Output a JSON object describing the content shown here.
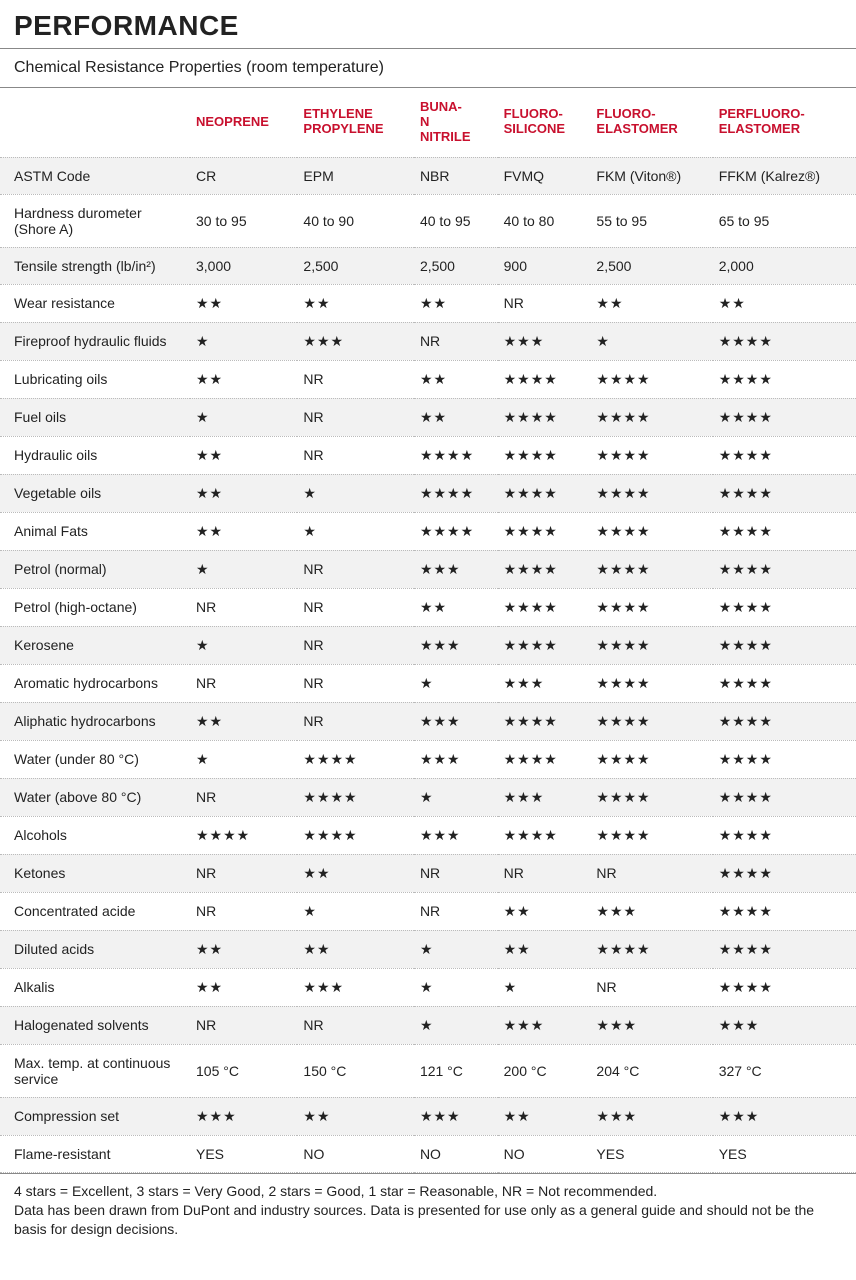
{
  "title": "PERFORMANCE",
  "subtitle": "Chemical Resistance Properties (room temperature)",
  "columns": [
    "NEOPRENE",
    "ETHYLENE PROPYLENE",
    "BUNA-N NITRILE",
    "FLUORO-SILICONE",
    "FLUORO-ELASTOMER",
    "PERFLUORO-ELASTOMER"
  ],
  "rows": [
    {
      "label": "ASTM Code",
      "vals": [
        "CR",
        "EPM",
        "NBR",
        "FVMQ",
        "FKM (Viton®)",
        "FFKM (Kalrez®)"
      ]
    },
    {
      "label": "Hardness durometer (Shore A)",
      "vals": [
        "30 to 95",
        "40 to 90",
        "40 to 95",
        "40 to 80",
        "55 to 95",
        "65 to 95"
      ]
    },
    {
      "label": "Tensile strength (lb/in²)",
      "vals": [
        "3,000",
        "2,500",
        "2,500",
        "900",
        "2,500",
        "2,000"
      ]
    },
    {
      "label": "Wear resistance",
      "vals": [
        "**",
        "**",
        "**",
        "NR",
        "**",
        "**"
      ]
    },
    {
      "label": "Fireproof hydraulic fluids",
      "vals": [
        "*",
        "***",
        "NR",
        "***",
        "*",
        "****"
      ]
    },
    {
      "label": "Lubricating oils",
      "vals": [
        "**",
        "NR",
        "**",
        "****",
        "****",
        "****"
      ]
    },
    {
      "label": "Fuel oils",
      "vals": [
        "*",
        "NR",
        "**",
        "****",
        "****",
        "****"
      ]
    },
    {
      "label": "Hydraulic oils",
      "vals": [
        "**",
        "NR",
        "****",
        "****",
        "****",
        "****"
      ]
    },
    {
      "label": "Vegetable oils",
      "vals": [
        "**",
        "*",
        "****",
        "****",
        "****",
        "****"
      ]
    },
    {
      "label": "Animal Fats",
      "vals": [
        "**",
        "*",
        "****",
        "****",
        "****",
        "****"
      ]
    },
    {
      "label": "Petrol (normal)",
      "vals": [
        "*",
        "NR",
        "***",
        "****",
        "****",
        "****"
      ]
    },
    {
      "label": "Petrol (high-octane)",
      "vals": [
        "NR",
        "NR",
        "**",
        "****",
        "****",
        "****"
      ]
    },
    {
      "label": "Kerosene",
      "vals": [
        "*",
        "NR",
        "***",
        "****",
        "****",
        "****"
      ]
    },
    {
      "label": "Aromatic hydrocarbons",
      "vals": [
        "NR",
        "NR",
        "*",
        "***",
        "****",
        "****"
      ]
    },
    {
      "label": "Aliphatic hydrocarbons",
      "vals": [
        "**",
        "NR",
        "***",
        "****",
        "****",
        "****"
      ]
    },
    {
      "label": "Water (under 80 °C)",
      "vals": [
        "*",
        "****",
        "***",
        "****",
        "****",
        "****"
      ]
    },
    {
      "label": "Water (above 80 °C)",
      "vals": [
        "NR",
        "****",
        "*",
        "***",
        "****",
        "****"
      ]
    },
    {
      "label": "Alcohols",
      "vals": [
        "****",
        "****",
        "***",
        "****",
        "****",
        "****"
      ]
    },
    {
      "label": "Ketones",
      "vals": [
        "NR",
        "**",
        "NR",
        "NR",
        "NR",
        "****"
      ]
    },
    {
      "label": "Concentrated acide",
      "vals": [
        "NR",
        "*",
        "NR",
        "**",
        "***",
        "****"
      ]
    },
    {
      "label": "Diluted acids",
      "vals": [
        "**",
        "**",
        "*",
        "**",
        "****",
        "****"
      ]
    },
    {
      "label": "Alkalis",
      "vals": [
        "**",
        "***",
        "*",
        "*",
        "NR",
        "****"
      ]
    },
    {
      "label": "Halogenated solvents",
      "vals": [
        "NR",
        "NR",
        "*",
        "***",
        "***",
        "***"
      ]
    },
    {
      "label": "Max. temp. at continuous service",
      "vals": [
        "105 °C",
        "150 °C",
        "121 °C",
        "200 °C",
        "204 °C",
        "327 °C"
      ]
    },
    {
      "label": "Compression set",
      "vals": [
        "***",
        "**",
        "***",
        "**",
        "***",
        "***"
      ]
    },
    {
      "label": "Flame-resistant",
      "vals": [
        "YES",
        "NO",
        "NO",
        "NO",
        "YES",
        "YES"
      ]
    }
  ],
  "footnote": "4 stars = Excellent, 3 stars = Very Good, 2 stars = Good, 1 star = Reasonable, NR = Not recommended.\nData has been drawn from DuPont and industry sources. Data is presented for use only as a general guide and should not be the basis for design decisions.",
  "colors": {
    "header_red": "#c8102e",
    "row_alt_bg": "#f2f2f2",
    "border": "#888888",
    "dotted": "#bbbbbb",
    "text": "#222222"
  }
}
